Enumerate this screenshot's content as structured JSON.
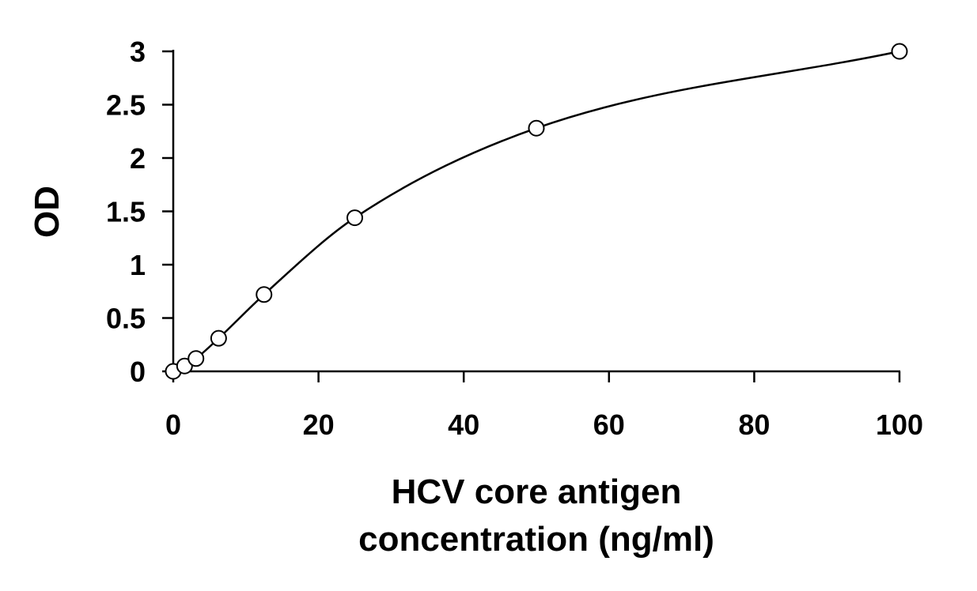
{
  "chart_data": {
    "type": "scatter",
    "title": "",
    "xlabel_lines": [
      "HCV core antigen",
      "concentration (ng/ml)"
    ],
    "ylabel": "OD",
    "xlim": [
      0,
      100
    ],
    "ylim": [
      0,
      3
    ],
    "x_ticks": [
      0,
      20,
      40,
      60,
      80,
      100
    ],
    "y_ticks": [
      0,
      0.5,
      1,
      1.5,
      2,
      2.5,
      3
    ],
    "x_tick_labels": [
      "0",
      "20",
      "40",
      "60",
      "80",
      "100"
    ],
    "y_tick_labels": [
      "0",
      "0.5",
      "1",
      "1.5",
      "2",
      "2.5",
      "3"
    ],
    "grid": false,
    "legend": "none",
    "series": [
      {
        "points": [
          {
            "x": 0,
            "y": 0
          },
          {
            "x": 1.56,
            "y": 0.05
          },
          {
            "x": 3.13,
            "y": 0.12
          },
          {
            "x": 6.25,
            "y": 0.31
          },
          {
            "x": 12.5,
            "y": 0.72
          },
          {
            "x": 25,
            "y": 1.44
          },
          {
            "x": 50,
            "y": 2.28
          },
          {
            "x": 100,
            "y": 3.0
          }
        ],
        "marker": "open-circle",
        "fit_curve": true,
        "color": "#000000"
      }
    ]
  }
}
